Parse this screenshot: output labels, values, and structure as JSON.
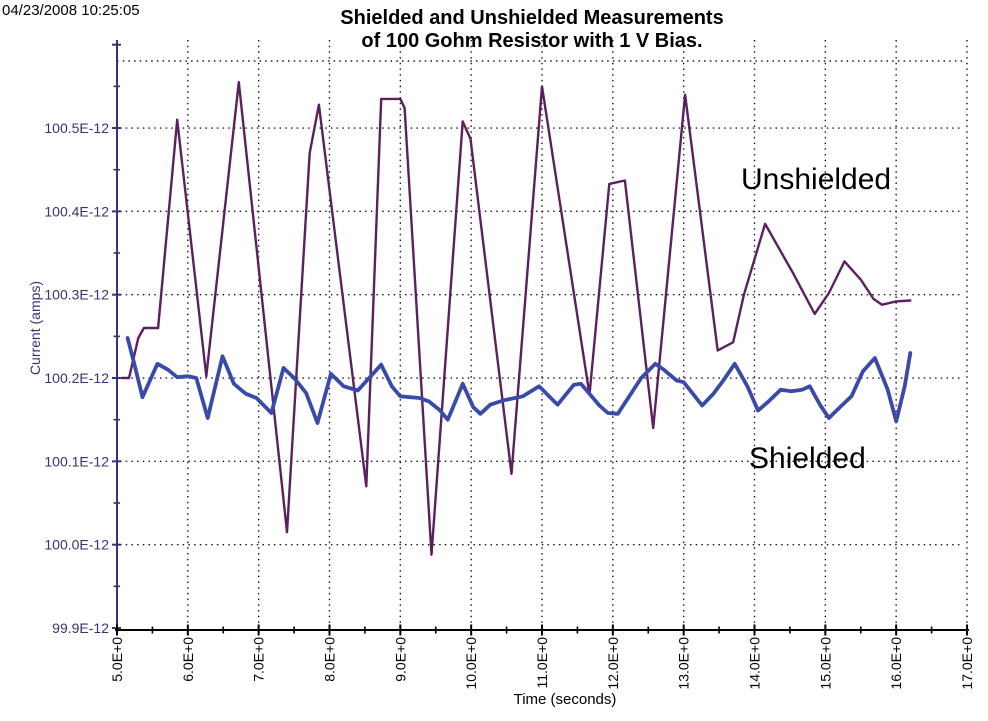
{
  "header": {
    "timestamp": "04/23/2008 10:25:05",
    "title_line1": "Shielded and Unshielded Measurements",
    "title_line2": "of 100 Gohm Resistor with 1 V Bias."
  },
  "chart_data": {
    "type": "line",
    "title": "Shielded and Unshielded Measurements of 100 Gohm Resistor with 1 V Bias.",
    "xlabel": "Time (seconds)",
    "ylabel": "Current (amps)",
    "x_unit": "seconds",
    "y_unit": "amps, values are E-12 (picoamps)",
    "xlim": [
      5,
      17
    ],
    "ylim": [
      99.9,
      100.6
    ],
    "x_major_ticks": [
      5,
      6,
      7,
      8,
      9,
      10,
      11,
      12,
      13,
      14,
      15,
      16,
      17
    ],
    "x_tick_labels": [
      "5.0E+0",
      "6.0E+0",
      "7.0E+0",
      "8.0E+0",
      "9.0E+0",
      "10.0E+0",
      "11.0E+0",
      "12.0E+0",
      "13.0E+0",
      "14.0E+0",
      "15.0E+0",
      "16.0E+0",
      "17.0E+0"
    ],
    "x_minor_ticks": [
      5.5,
      6.5,
      7.5,
      8.5,
      9.5,
      10.5,
      11.5,
      12.5,
      13.5,
      14.5,
      15.5,
      16.5
    ],
    "y_major_ticks": [
      99.9,
      100.0,
      100.1,
      100.2,
      100.3,
      100.4,
      100.5,
      100.6
    ],
    "y_tick_labels": [
      "99.9E-12",
      "100.0E-12",
      "100.1E-12",
      "100.2E-12",
      "100.3E-12",
      "100.4E-12",
      "100.5E-12"
    ],
    "y_minor_ticks": [
      99.95,
      100.05,
      100.15,
      100.25,
      100.35,
      100.45,
      100.55
    ],
    "grid": {
      "style": "dotted",
      "color": "#1a1a1a",
      "major_only": true
    },
    "legend_position": "none (inline text annotations)",
    "axis_colors": {
      "y_axis": "#343477",
      "x_axis": "#000000"
    },
    "annotations": [
      {
        "text": "Unshielded",
        "x": 13.82,
        "y": 100.43
      },
      {
        "text": "Shielded",
        "x": 13.93,
        "y": 100.09
      }
    ],
    "series": [
      {
        "name": "Unshielded",
        "color": "#5c2060",
        "line_width": 2.4,
        "points": [
          [
            5.07,
            100.2
          ],
          [
            5.17,
            100.2
          ],
          [
            5.3,
            100.248
          ],
          [
            5.38,
            100.26
          ],
          [
            5.58,
            100.26
          ],
          [
            5.85,
            100.51
          ],
          [
            6.26,
            100.202
          ],
          [
            6.72,
            100.555
          ],
          [
            7.4,
            100.015
          ],
          [
            7.6,
            100.3
          ],
          [
            7.72,
            100.47
          ],
          [
            7.85,
            100.528
          ],
          [
            8.52,
            100.07
          ],
          [
            8.73,
            100.535
          ],
          [
            9.0,
            100.535
          ],
          [
            9.06,
            100.524
          ],
          [
            9.44,
            99.988
          ],
          [
            9.88,
            100.508
          ],
          [
            9.99,
            100.487
          ],
          [
            10.57,
            100.085
          ],
          [
            11.0,
            100.55
          ],
          [
            11.67,
            100.18
          ],
          [
            11.95,
            100.433
          ],
          [
            12.17,
            100.437
          ],
          [
            12.57,
            100.14
          ],
          [
            13.02,
            100.54
          ],
          [
            13.48,
            100.233
          ],
          [
            13.7,
            100.243
          ],
          [
            13.85,
            100.3
          ],
          [
            14.15,
            100.385
          ],
          [
            14.55,
            100.325
          ],
          [
            14.85,
            100.277
          ],
          [
            15.05,
            100.302
          ],
          [
            15.27,
            100.34
          ],
          [
            15.5,
            100.318
          ],
          [
            15.68,
            100.295
          ],
          [
            15.8,
            100.288
          ],
          [
            16.0,
            100.292
          ],
          [
            16.2,
            100.293
          ]
        ]
      },
      {
        "name": "Shielded",
        "color": "#3a4aa8",
        "line_width": 3.8,
        "points": [
          [
            5.15,
            100.248
          ],
          [
            5.25,
            100.215
          ],
          [
            5.36,
            100.177
          ],
          [
            5.57,
            100.217
          ],
          [
            5.72,
            100.21
          ],
          [
            5.85,
            100.201
          ],
          [
            6.0,
            100.202
          ],
          [
            6.12,
            100.2
          ],
          [
            6.28,
            100.152
          ],
          [
            6.49,
            100.226
          ],
          [
            6.65,
            100.193
          ],
          [
            6.82,
            100.181
          ],
          [
            6.97,
            100.176
          ],
          [
            7.12,
            100.163
          ],
          [
            7.18,
            100.158
          ],
          [
            7.35,
            100.212
          ],
          [
            7.5,
            100.2
          ],
          [
            7.67,
            100.182
          ],
          [
            7.83,
            100.146
          ],
          [
            8.02,
            100.205
          ],
          [
            8.2,
            100.19
          ],
          [
            8.4,
            100.185
          ],
          [
            8.73,
            100.216
          ],
          [
            8.88,
            100.19
          ],
          [
            9.0,
            100.178
          ],
          [
            9.27,
            100.176
          ],
          [
            9.4,
            100.172
          ],
          [
            9.55,
            100.162
          ],
          [
            9.67,
            100.15
          ],
          [
            9.88,
            100.193
          ],
          [
            10.03,
            100.165
          ],
          [
            10.13,
            100.157
          ],
          [
            10.27,
            100.168
          ],
          [
            10.45,
            100.173
          ],
          [
            10.73,
            100.178
          ],
          [
            10.96,
            100.19
          ],
          [
            11.1,
            100.178
          ],
          [
            11.22,
            100.168
          ],
          [
            11.45,
            100.192
          ],
          [
            11.55,
            100.193
          ],
          [
            11.81,
            100.167
          ],
          [
            11.93,
            100.158
          ],
          [
            12.07,
            100.157
          ],
          [
            12.24,
            100.179
          ],
          [
            12.4,
            100.2
          ],
          [
            12.6,
            100.217
          ],
          [
            12.72,
            100.21
          ],
          [
            12.9,
            100.197
          ],
          [
            13.0,
            100.195
          ],
          [
            13.14,
            100.18
          ],
          [
            13.26,
            100.167
          ],
          [
            13.42,
            100.181
          ],
          [
            13.56,
            100.197
          ],
          [
            13.72,
            100.217
          ],
          [
            13.9,
            100.19
          ],
          [
            14.05,
            100.161
          ],
          [
            14.2,
            100.172
          ],
          [
            14.37,
            100.186
          ],
          [
            14.52,
            100.184
          ],
          [
            14.67,
            100.186
          ],
          [
            14.78,
            100.19
          ],
          [
            14.93,
            100.167
          ],
          [
            15.05,
            100.152
          ],
          [
            15.22,
            100.166
          ],
          [
            15.37,
            100.178
          ],
          [
            15.53,
            100.208
          ],
          [
            15.7,
            100.224
          ],
          [
            15.88,
            100.186
          ],
          [
            16.0,
            100.148
          ],
          [
            16.12,
            100.19
          ],
          [
            16.2,
            100.23
          ]
        ]
      }
    ]
  }
}
